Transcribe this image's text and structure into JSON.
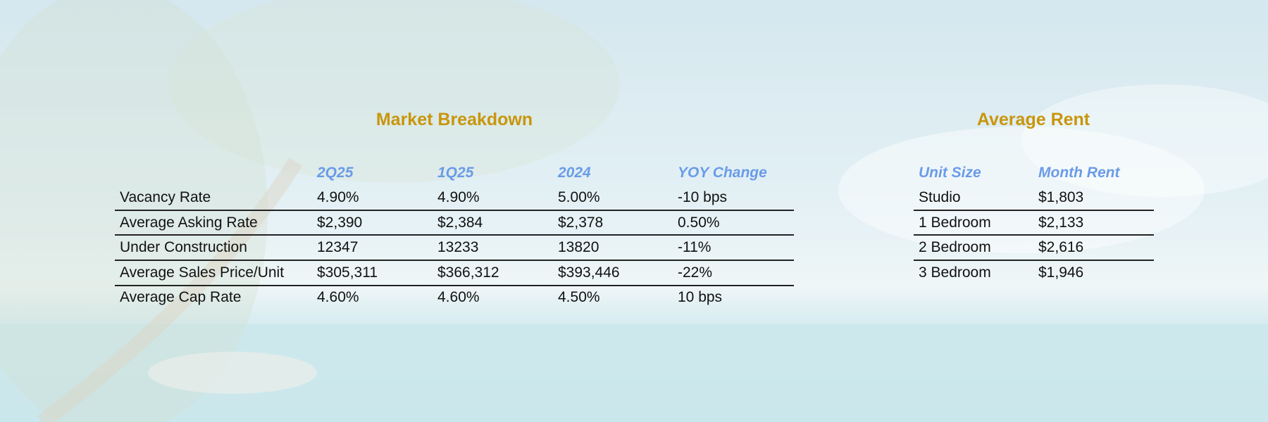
{
  "market_breakdown": {
    "title": "Market Breakdown",
    "headers": [
      "",
      "2Q25",
      "1Q25",
      "2024",
      "YOY Change"
    ],
    "rows": [
      [
        "Vacancy Rate",
        "4.90%",
        "4.90%",
        "5.00%",
        "-10 bps"
      ],
      [
        "Average Asking Rate",
        "$2,390",
        "$2,384",
        "$2,378",
        "0.50%"
      ],
      [
        "Under Construction",
        "12347",
        "13233",
        "13820",
        "-11%"
      ],
      [
        "Average Sales Price/Unit",
        "$305,311",
        "$366,312",
        "$393,446",
        "-22%"
      ],
      [
        "Average Cap Rate",
        "4.60%",
        "4.60%",
        "4.50%",
        "10 bps"
      ]
    ]
  },
  "average_rent": {
    "title": "Average Rent",
    "headers": [
      "Unit Size",
      "Month Rent"
    ],
    "rows": [
      [
        "Studio",
        "$1,803"
      ],
      [
        "1 Bedroom",
        "$2,133"
      ],
      [
        "2 Bedroom",
        "$2,616"
      ],
      [
        "3 Bedroom",
        "$1,946"
      ]
    ]
  }
}
